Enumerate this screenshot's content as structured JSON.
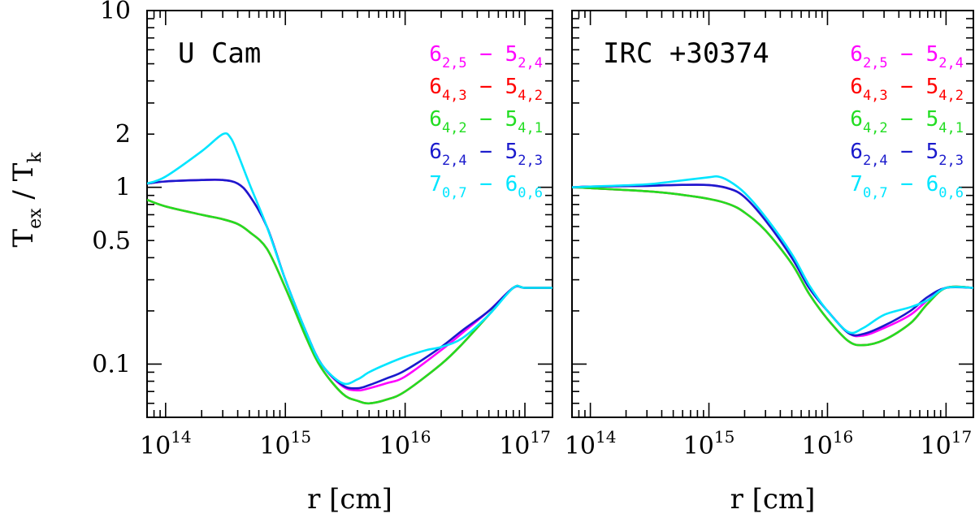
{
  "chart_data": [
    {
      "type": "line",
      "panel": "left",
      "title": "U Cam",
      "xlabel": "r [cm]",
      "ylabel": "T_ex / T_k",
      "xscale": "log",
      "yscale": "log",
      "xlim": [
        70000000000000.0,
        1.7e+17
      ],
      "ylim": [
        0.05,
        10
      ],
      "xticks": [
        {
          "value": 100000000000000.0,
          "base": "10",
          "exp": "14"
        },
        {
          "value": 1000000000000000.0,
          "base": "10",
          "exp": "15"
        },
        {
          "value": 1e+16,
          "base": "10",
          "exp": "16"
        },
        {
          "value": 1e+17,
          "base": "10",
          "exp": "17"
        }
      ],
      "yticks": [
        {
          "value": 10,
          "label": "10"
        },
        {
          "value": 2,
          "label": "2"
        },
        {
          "value": 1,
          "label": "1"
        },
        {
          "value": 0.5,
          "label": "0.5"
        },
        {
          "value": 0.1,
          "label": "0.1"
        }
      ],
      "legend_location": "top-right",
      "series": [
        {
          "name": "6_{2,5} - 5_{2,4}",
          "color": "#ff00ff",
          "x": [
            70000000000000.0,
            100000000000000.0,
            200000000000000.0,
            300000000000000.0,
            400000000000000.0,
            500000000000000.0,
            700000000000000.0,
            1000000000000000.0,
            1500000000000000.0,
            2000000000000000.0,
            3000000000000000.0,
            4000000000000000.0,
            5000000000000000.0,
            7000000000000000.0,
            1e+16,
            2e+16,
            3e+16,
            5e+16,
            8e+16,
            1e+17,
            1.7e+17
          ],
          "y": [
            1.05,
            1.08,
            1.1,
            1.1,
            1.05,
            0.9,
            0.6,
            0.3,
            0.15,
            0.1,
            0.075,
            0.071,
            0.073,
            0.078,
            0.085,
            0.12,
            0.15,
            0.2,
            0.27,
            0.27,
            0.27
          ]
        },
        {
          "name": "6_{4,3} - 5_{4,2}",
          "color": "#ff0000",
          "x": [
            70000000000000.0,
            100000000000000.0,
            200000000000000.0,
            300000000000000.0,
            400000000000000.0,
            500000000000000.0,
            700000000000000.0,
            1000000000000000.0,
            1500000000000000.0,
            2000000000000000.0,
            3000000000000000.0,
            4000000000000000.0,
            5000000000000000.0,
            7000000000000000.0,
            1e+16,
            2e+16,
            3e+16,
            5e+16,
            8e+16,
            1e+17,
            1.7e+17
          ],
          "y": [
            0.85,
            0.78,
            0.7,
            0.66,
            0.62,
            0.56,
            0.45,
            0.27,
            0.14,
            0.095,
            0.068,
            0.062,
            0.06,
            0.063,
            0.07,
            0.1,
            0.13,
            0.19,
            0.27,
            0.27,
            0.27
          ]
        },
        {
          "name": "6_{4,2} - 5_{4,1}",
          "color": "#22dd22",
          "x": [
            70000000000000.0,
            100000000000000.0,
            200000000000000.0,
            300000000000000.0,
            400000000000000.0,
            500000000000000.0,
            700000000000000.0,
            1000000000000000.0,
            1500000000000000.0,
            2000000000000000.0,
            3000000000000000.0,
            4000000000000000.0,
            5000000000000000.0,
            7000000000000000.0,
            1e+16,
            2e+16,
            3e+16,
            5e+16,
            8e+16,
            1e+17,
            1.7e+17
          ],
          "y": [
            0.85,
            0.78,
            0.7,
            0.66,
            0.62,
            0.56,
            0.45,
            0.27,
            0.14,
            0.095,
            0.068,
            0.062,
            0.06,
            0.063,
            0.07,
            0.1,
            0.13,
            0.19,
            0.27,
            0.27,
            0.27
          ]
        },
        {
          "name": "6_{2,4} - 5_{2,3}",
          "color": "#1a1acc",
          "x": [
            70000000000000.0,
            100000000000000.0,
            200000000000000.0,
            300000000000000.0,
            400000000000000.0,
            500000000000000.0,
            700000000000000.0,
            1000000000000000.0,
            1500000000000000.0,
            2000000000000000.0,
            3000000000000000.0,
            4000000000000000.0,
            5000000000000000.0,
            7000000000000000.0,
            1e+16,
            2e+16,
            3e+16,
            5e+16,
            8e+16,
            1e+17,
            1.7e+17
          ],
          "y": [
            1.05,
            1.08,
            1.1,
            1.1,
            1.05,
            0.9,
            0.6,
            0.3,
            0.15,
            0.1,
            0.076,
            0.073,
            0.076,
            0.083,
            0.092,
            0.125,
            0.155,
            0.2,
            0.27,
            0.27,
            0.27
          ]
        },
        {
          "name": "7_{0,7} - 6_{0,6}",
          "color": "#00e5ff",
          "x": [
            70000000000000.0,
            100000000000000.0,
            200000000000000.0,
            300000000000000.0,
            350000000000000.0,
            400000000000000.0,
            500000000000000.0,
            700000000000000.0,
            1000000000000000.0,
            1500000000000000.0,
            2000000000000000.0,
            3000000000000000.0,
            4000000000000000.0,
            5000000000000000.0,
            7000000000000000.0,
            1e+16,
            1.5e+16,
            2e+16,
            3e+16,
            5e+16,
            8e+16,
            1e+17,
            1.7e+17
          ],
          "y": [
            1.05,
            1.15,
            1.6,
            2.0,
            1.9,
            1.55,
            1.05,
            0.6,
            0.3,
            0.15,
            0.1,
            0.078,
            0.082,
            0.09,
            0.1,
            0.11,
            0.12,
            0.125,
            0.14,
            0.19,
            0.27,
            0.27,
            0.27
          ]
        }
      ]
    },
    {
      "type": "line",
      "panel": "right",
      "title": "IRC +30374",
      "xlabel": "r [cm]",
      "ylabel": "T_ex / T_k",
      "xscale": "log",
      "yscale": "log",
      "xlim": [
        70000000000000.0,
        1.7e+17
      ],
      "ylim": [
        0.05,
        10
      ],
      "xticks": [
        {
          "value": 100000000000000.0,
          "base": "10",
          "exp": "14"
        },
        {
          "value": 1000000000000000.0,
          "base": "10",
          "exp": "15"
        },
        {
          "value": 1e+16,
          "base": "10",
          "exp": "16"
        },
        {
          "value": 1e+17,
          "base": "10",
          "exp": "17"
        }
      ],
      "yticks": [
        {
          "value": 10,
          "label": "10"
        },
        {
          "value": 2,
          "label": "2"
        },
        {
          "value": 1,
          "label": "1"
        },
        {
          "value": 0.5,
          "label": "0.5"
        },
        {
          "value": 0.1,
          "label": "0.1"
        }
      ],
      "legend_location": "top-right",
      "series": [
        {
          "name": "6_{2,5} - 5_{2,4}",
          "color": "#ff00ff",
          "x": [
            70000000000000.0,
            100000000000000.0,
            300000000000000.0,
            500000000000000.0,
            1000000000000000.0,
            1500000000000000.0,
            2000000000000000.0,
            3000000000000000.0,
            5000000000000000.0,
            7000000000000000.0,
            1e+16,
            1.5e+16,
            2e+16,
            3e+16,
            5e+16,
            7e+16,
            1e+17,
            1.7e+17
          ],
          "y": [
            1.0,
            1.01,
            1.02,
            1.03,
            1.03,
            0.98,
            0.88,
            0.65,
            0.4,
            0.27,
            0.2,
            0.15,
            0.145,
            0.16,
            0.19,
            0.23,
            0.27,
            0.27
          ]
        },
        {
          "name": "6_{4,3} - 5_{4,2}",
          "color": "#ff0000",
          "x": [
            70000000000000.0,
            100000000000000.0,
            300000000000000.0,
            500000000000000.0,
            1000000000000000.0,
            1500000000000000.0,
            2000000000000000.0,
            3000000000000000.0,
            5000000000000000.0,
            7000000000000000.0,
            1e+16,
            1.5e+16,
            2e+16,
            3e+16,
            5e+16,
            7e+16,
            1e+17,
            1.7e+17
          ],
          "y": [
            1.0,
            0.99,
            0.95,
            0.92,
            0.86,
            0.8,
            0.72,
            0.57,
            0.37,
            0.25,
            0.18,
            0.135,
            0.128,
            0.137,
            0.17,
            0.22,
            0.27,
            0.27
          ]
        },
        {
          "name": "6_{4,2} - 5_{4,1}",
          "color": "#22dd22",
          "x": [
            70000000000000.0,
            100000000000000.0,
            300000000000000.0,
            500000000000000.0,
            1000000000000000.0,
            1500000000000000.0,
            2000000000000000.0,
            3000000000000000.0,
            5000000000000000.0,
            7000000000000000.0,
            1e+16,
            1.5e+16,
            2e+16,
            3e+16,
            5e+16,
            7e+16,
            1e+17,
            1.7e+17
          ],
          "y": [
            1.0,
            0.99,
            0.95,
            0.92,
            0.86,
            0.8,
            0.72,
            0.57,
            0.37,
            0.25,
            0.18,
            0.135,
            0.128,
            0.137,
            0.17,
            0.22,
            0.27,
            0.27
          ]
        },
        {
          "name": "6_{2,4} - 5_{2,3}",
          "color": "#1a1acc",
          "x": [
            70000000000000.0,
            100000000000000.0,
            300000000000000.0,
            500000000000000.0,
            1000000000000000.0,
            1500000000000000.0,
            2000000000000000.0,
            3000000000000000.0,
            5000000000000000.0,
            7000000000000000.0,
            1e+16,
            1.5e+16,
            2e+16,
            3e+16,
            5e+16,
            7e+16,
            1e+17,
            1.7e+17
          ],
          "y": [
            1.0,
            1.01,
            1.02,
            1.03,
            1.03,
            0.98,
            0.88,
            0.65,
            0.4,
            0.27,
            0.2,
            0.15,
            0.148,
            0.165,
            0.2,
            0.24,
            0.27,
            0.27
          ]
        },
        {
          "name": "7_{0,7} - 6_{0,6}",
          "color": "#00e5ff",
          "x": [
            70000000000000.0,
            100000000000000.0,
            300000000000000.0,
            500000000000000.0,
            1000000000000000.0,
            1200000000000000.0,
            1500000000000000.0,
            2000000000000000.0,
            3000000000000000.0,
            5000000000000000.0,
            7000000000000000.0,
            1e+16,
            1.5e+16,
            2e+16,
            3e+16,
            5e+16,
            7e+16,
            1e+17,
            1.7e+17
          ],
          "y": [
            1.0,
            1.01,
            1.04,
            1.08,
            1.14,
            1.15,
            1.08,
            0.93,
            0.68,
            0.42,
            0.28,
            0.2,
            0.152,
            0.16,
            0.19,
            0.21,
            0.23,
            0.27,
            0.27
          ]
        }
      ]
    }
  ]
}
